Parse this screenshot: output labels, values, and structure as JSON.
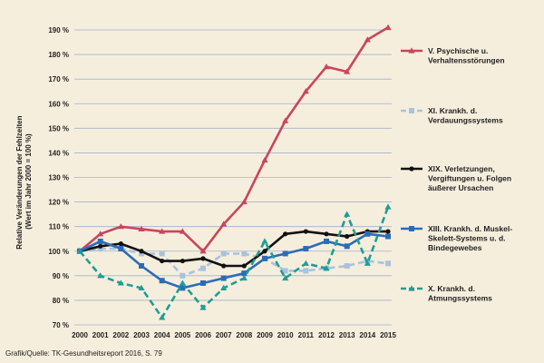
{
  "chart_data": {
    "type": "line",
    "x": [
      "2000",
      "2001",
      "2002",
      "2003",
      "2004",
      "2005",
      "2006",
      "2007",
      "2008",
      "2009",
      "2010",
      "2011",
      "2012",
      "2013",
      "2014",
      "2015"
    ],
    "ylabel_lines": [
      "Relative Veränderungen der Fehlzeiten",
      "(Wert im Jahr 2000 = 100 %)"
    ],
    "ylim": [
      70,
      190
    ],
    "yticks": [
      "70 %",
      "80 %",
      "90 %",
      "100 %",
      "110 %",
      "120 %",
      "130 %",
      "140 %",
      "150 %",
      "160 %",
      "170 %",
      "180 %",
      "190 %"
    ],
    "grid": "horizontal",
    "legend_position": "right",
    "series": [
      {
        "name_lines": [
          "V. Psychische u.",
          "Verhaltensstörungen"
        ],
        "color": "#c8455e",
        "style": "solid",
        "marker": "triangle",
        "values": [
          100,
          107,
          110,
          109,
          108,
          108,
          100,
          111,
          120,
          137,
          153,
          165,
          175,
          173,
          186,
          191
        ]
      },
      {
        "name_lines": [
          "XI. Krankh. d.",
          "Verdauungssystems"
        ],
        "color": "#a9c2de",
        "style": "dashed",
        "marker": "square",
        "values": [
          100,
          101,
          101,
          99,
          99,
          90,
          93,
          99,
          99,
          97,
          92,
          92,
          93,
          94,
          96,
          95
        ]
      },
      {
        "name_lines": [
          "XIX. Verletzungen,",
          "Vergiftungen u. Folgen",
          "äußerer Ursachen"
        ],
        "color": "#111111",
        "style": "solid",
        "marker": "circle",
        "values": [
          100,
          102,
          103,
          100,
          96,
          96,
          97,
          94,
          94,
          100,
          107,
          108,
          107,
          106,
          108,
          108
        ]
      },
      {
        "name_lines": [
          "XIII. Krankh. d. Muskel-",
          "Skelett-Systems u. d.",
          "Bindegewebes"
        ],
        "color": "#2b6cb8",
        "style": "solid",
        "marker": "square",
        "values": [
          100,
          104,
          101,
          94,
          88,
          85,
          87,
          89,
          91,
          97,
          99,
          101,
          104,
          102,
          107,
          106
        ]
      },
      {
        "name_lines": [
          "X. Krankh. d.",
          "Atmungssystems"
        ],
        "color": "#1f9e95",
        "style": "dashed",
        "marker": "triangle",
        "values": [
          100,
          90,
          87,
          85,
          73,
          87,
          77,
          85,
          89,
          104,
          89,
          95,
          93,
          115,
          95,
          118
        ]
      }
    ]
  },
  "source": "Grafik/Quelle: TK-Gesundheitsreport 2016, S. 79"
}
